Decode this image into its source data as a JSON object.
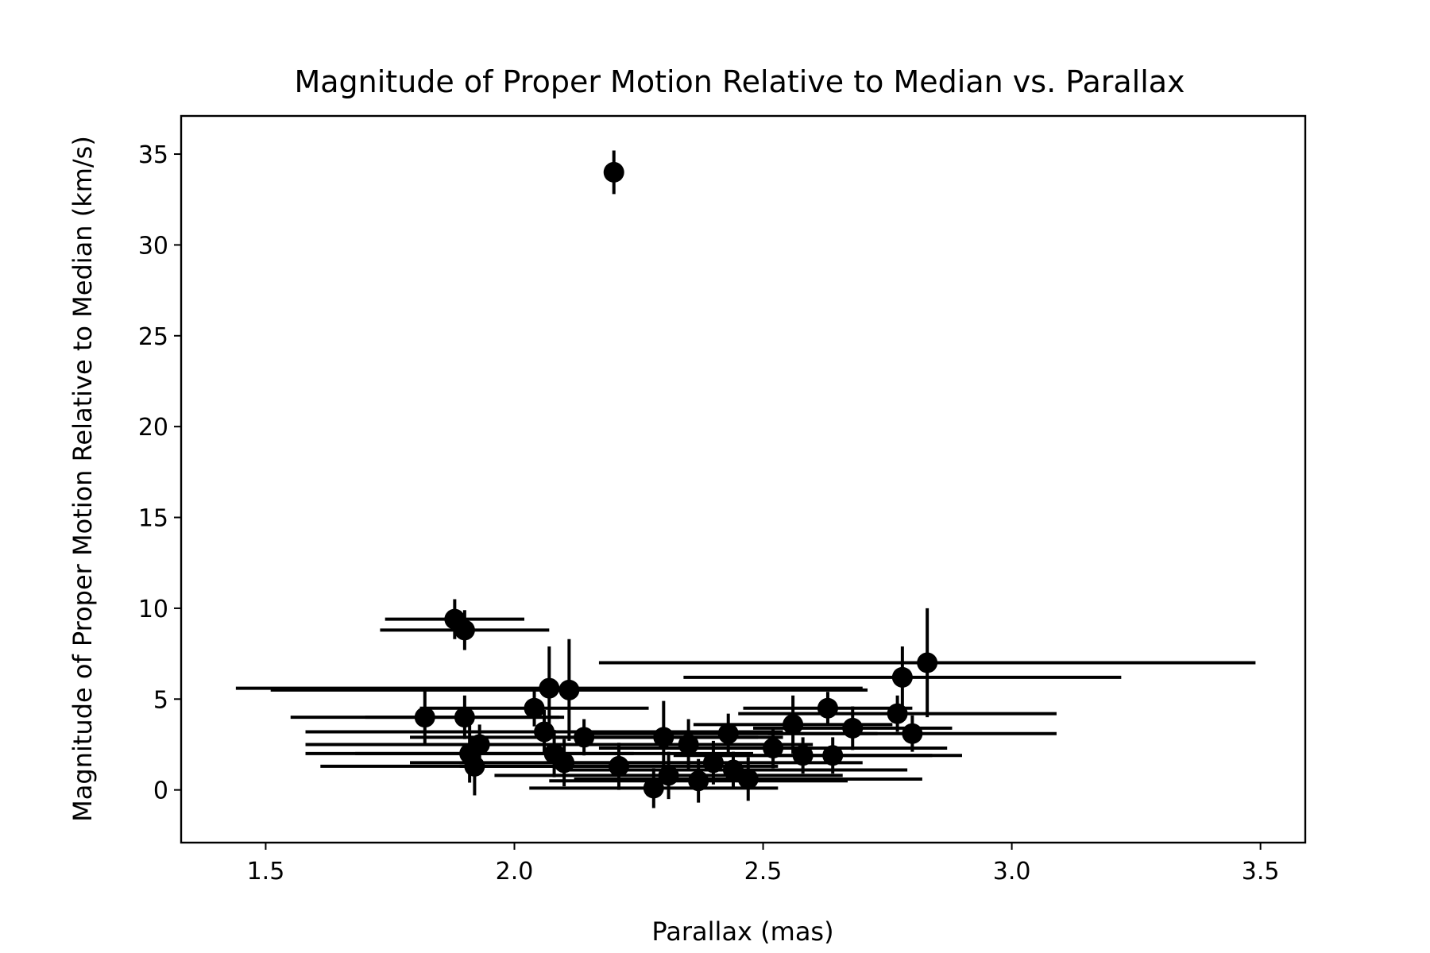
{
  "chart_data": {
    "type": "scatter",
    "title": "Magnitude of Proper Motion Relative to Median vs. Parallax",
    "xlabel": "Parallax (mas)",
    "ylabel": "Magnitude of Proper Motion Relative to Median (km/s)",
    "xlim": [
      1.33,
      3.59
    ],
    "ylim": [
      -2.9,
      37.1
    ],
    "xticks": [
      {
        "value": 1.5,
        "label": "1.5"
      },
      {
        "value": 2.0,
        "label": "2.0"
      },
      {
        "value": 2.5,
        "label": "2.5"
      },
      {
        "value": 3.0,
        "label": "3.0"
      },
      {
        "value": 3.5,
        "label": "3.5"
      }
    ],
    "yticks": [
      {
        "value": 0,
        "label": "0"
      },
      {
        "value": 5,
        "label": "5"
      },
      {
        "value": 10,
        "label": "10"
      },
      {
        "value": 15,
        "label": "15"
      },
      {
        "value": 20,
        "label": "20"
      },
      {
        "value": 25,
        "label": "25"
      },
      {
        "value": 30,
        "label": "30"
      },
      {
        "value": 35,
        "label": "35"
      }
    ],
    "grid": false,
    "legend": "none",
    "marker_color": "#000000",
    "points": [
      {
        "x": 2.2,
        "y": 34.0,
        "xerr": 0.02,
        "yerr": 1.2
      },
      {
        "x": 1.88,
        "y": 9.4,
        "xerr": 0.14,
        "yerr": 1.1
      },
      {
        "x": 1.9,
        "y": 8.8,
        "xerr": 0.17,
        "yerr": 1.1
      },
      {
        "x": 2.83,
        "y": 7.0,
        "xerr": 0.66,
        "yerr": 3.0
      },
      {
        "x": 2.78,
        "y": 6.2,
        "xerr": 0.44,
        "yerr": 1.7
      },
      {
        "x": 2.07,
        "y": 5.6,
        "xerr": 0.63,
        "yerr": 2.3
      },
      {
        "x": 2.11,
        "y": 5.5,
        "xerr": 0.6,
        "yerr": 2.8
      },
      {
        "x": 2.04,
        "y": 4.5,
        "xerr": 0.23,
        "yerr": 1.0
      },
      {
        "x": 2.63,
        "y": 4.5,
        "xerr": 0.17,
        "yerr": 0.9
      },
      {
        "x": 1.82,
        "y": 4.0,
        "xerr": 0.27,
        "yerr": 1.5
      },
      {
        "x": 1.9,
        "y": 4.0,
        "xerr": 0.2,
        "yerr": 1.2
      },
      {
        "x": 2.77,
        "y": 4.2,
        "xerr": 0.32,
        "yerr": 1.0
      },
      {
        "x": 2.56,
        "y": 3.6,
        "xerr": 0.2,
        "yerr": 1.6
      },
      {
        "x": 2.68,
        "y": 3.4,
        "xerr": 0.2,
        "yerr": 1.2
      },
      {
        "x": 2.43,
        "y": 3.1,
        "xerr": 0.3,
        "yerr": 1.1
      },
      {
        "x": 2.8,
        "y": 3.1,
        "xerr": 0.29,
        "yerr": 1.0
      },
      {
        "x": 2.06,
        "y": 3.2,
        "xerr": 0.48,
        "yerr": 1.2
      },
      {
        "x": 2.14,
        "y": 2.9,
        "xerr": 0.35,
        "yerr": 1.0
      },
      {
        "x": 1.93,
        "y": 2.5,
        "xerr": 0.35,
        "yerr": 1.1
      },
      {
        "x": 2.3,
        "y": 2.9,
        "xerr": 0.24,
        "yerr": 2.0
      },
      {
        "x": 2.35,
        "y": 2.5,
        "xerr": 0.25,
        "yerr": 1.4
      },
      {
        "x": 2.52,
        "y": 2.3,
        "xerr": 0.35,
        "yerr": 1.1
      },
      {
        "x": 1.91,
        "y": 2.0,
        "xerr": 0.33,
        "yerr": 1.6
      },
      {
        "x": 2.08,
        "y": 2.0,
        "xerr": 0.4,
        "yerr": 1.3
      },
      {
        "x": 2.58,
        "y": 1.9,
        "xerr": 0.26,
        "yerr": 1.0
      },
      {
        "x": 2.64,
        "y": 1.9,
        "xerr": 0.26,
        "yerr": 1.0
      },
      {
        "x": 1.92,
        "y": 1.3,
        "xerr": 0.31,
        "yerr": 1.6
      },
      {
        "x": 2.1,
        "y": 1.5,
        "xerr": 0.31,
        "yerr": 1.3
      },
      {
        "x": 2.21,
        "y": 1.3,
        "xerr": 0.32,
        "yerr": 1.3
      },
      {
        "x": 2.4,
        "y": 1.5,
        "xerr": 0.3,
        "yerr": 1.2
      },
      {
        "x": 2.44,
        "y": 1.1,
        "xerr": 0.35,
        "yerr": 1.0
      },
      {
        "x": 2.31,
        "y": 0.8,
        "xerr": 0.35,
        "yerr": 1.3
      },
      {
        "x": 2.47,
        "y": 0.6,
        "xerr": 0.35,
        "yerr": 1.2
      },
      {
        "x": 2.37,
        "y": 0.5,
        "xerr": 0.3,
        "yerr": 1.2
      },
      {
        "x": 2.28,
        "y": 0.1,
        "xerr": 0.25,
        "yerr": 1.1
      }
    ]
  }
}
